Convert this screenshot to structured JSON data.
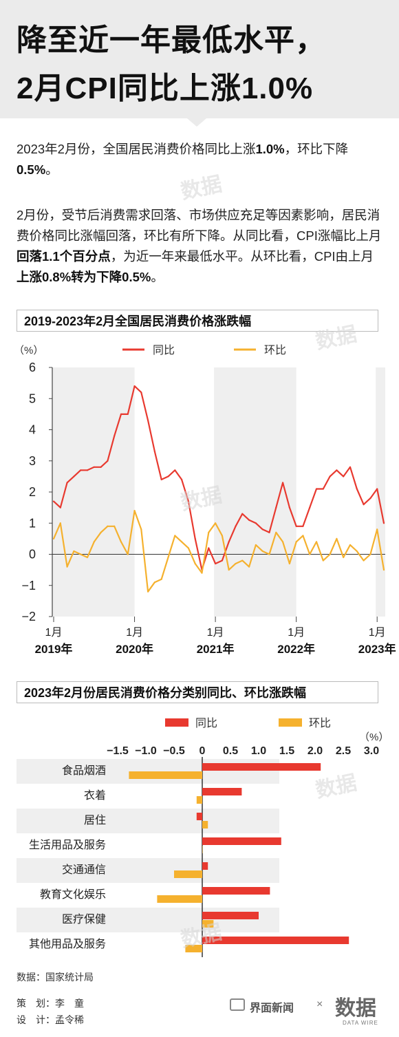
{
  "header": {
    "title_line1": "降至近一年最低水平，",
    "title_line2": "2月CPI同比上涨1.0%"
  },
  "intro": {
    "p1": [
      "2023年2月份，全国居民消费价格同比上涨",
      "1.0%",
      "，环比下降",
      "0.5%",
      "。"
    ],
    "p2": [
      "2月份，受节后消费需求回落、市场供应充足等因素影响，居民消费价格同比涨幅回落，环比有所下降。从同比看，CPI涨幅比上月",
      "回落1.1个百分点",
      "，为近一年来最低水平。从环比看，CPI由上月",
      "上涨0.8%转为下降0.5%",
      "。"
    ]
  },
  "watermark": "数据",
  "chart_data": [
    {
      "type": "line",
      "title": "2019-2023年2月全国居民消费价格涨跌幅",
      "unit": "（%）",
      "ylim": [
        -2,
        6
      ],
      "yticks": [
        -2,
        -1,
        0,
        1,
        2,
        3,
        4,
        5,
        6
      ],
      "x_month_labels": [
        "1月",
        "1月",
        "1月",
        "1月",
        "1月"
      ],
      "x_year_labels": [
        "2019年",
        "2020年",
        "2021年",
        "2022年",
        "2023年"
      ],
      "series": [
        {
          "name": "同比",
          "color": "#e8392f",
          "values": [
            1.7,
            1.5,
            2.3,
            2.5,
            2.7,
            2.7,
            2.8,
            2.8,
            3.0,
            3.8,
            4.5,
            4.5,
            5.4,
            5.2,
            4.3,
            3.3,
            2.4,
            2.5,
            2.7,
            2.4,
            1.7,
            0.5,
            -0.5,
            0.2,
            -0.3,
            -0.2,
            0.4,
            0.9,
            1.3,
            1.1,
            1.0,
            0.8,
            0.7,
            1.5,
            2.3,
            1.5,
            0.9,
            0.9,
            1.5,
            2.1,
            2.1,
            2.5,
            2.7,
            2.5,
            2.8,
            2.1,
            1.6,
            1.8,
            2.1,
            1.0
          ]
        },
        {
          "name": "环比",
          "color": "#f5b12e",
          "values": [
            0.5,
            1.0,
            -0.4,
            0.1,
            0.0,
            -0.1,
            0.4,
            0.7,
            0.9,
            0.9,
            0.4,
            0.0,
            1.4,
            0.8,
            -1.2,
            -0.9,
            -0.8,
            -0.1,
            0.6,
            0.4,
            0.2,
            -0.3,
            -0.6,
            0.7,
            1.0,
            0.6,
            -0.5,
            -0.3,
            -0.2,
            -0.4,
            0.3,
            0.1,
            0.0,
            0.7,
            0.4,
            -0.3,
            0.4,
            0.6,
            0.0,
            0.4,
            -0.2,
            0.0,
            0.5,
            -0.1,
            0.3,
            0.1,
            -0.2,
            0.0,
            0.8,
            -0.5
          ]
        }
      ]
    },
    {
      "type": "bar",
      "title": "2023年2月份居民消费价格分类别同比、环比涨跌幅",
      "unit": "（%）",
      "xlim": [
        -1.5,
        3.0
      ],
      "xticks": [
        "-1.5",
        "-1.0",
        "-0.5",
        "0",
        "0.5",
        "1.0",
        "1.5",
        "2.0",
        "2.5",
        "3.0"
      ],
      "categories": [
        "食品烟酒",
        "衣着",
        "居住",
        "生活用品及服务",
        "交通通信",
        "教育文化娱乐",
        "医疗保健",
        "其他用品及服务"
      ],
      "series": [
        {
          "name": "同比",
          "color": "#e8392f",
          "values": [
            2.1,
            0.7,
            -0.1,
            1.4,
            0.1,
            1.2,
            1.0,
            2.6
          ]
        },
        {
          "name": "环比",
          "color": "#f5b12e",
          "values": [
            -1.3,
            -0.1,
            0.1,
            0.0,
            -0.5,
            -0.8,
            0.2,
            -0.3
          ]
        }
      ]
    }
  ],
  "footer": {
    "source": "数据：国家统计局",
    "planner_label": "策　划：",
    "planner_name": "李　童",
    "designer_label": "设　计：",
    "designer_name": "孟令稀",
    "brand": "界面新闻",
    "times": "×",
    "brand2": "数据",
    "brand2_sub": "DATA WIRE"
  }
}
